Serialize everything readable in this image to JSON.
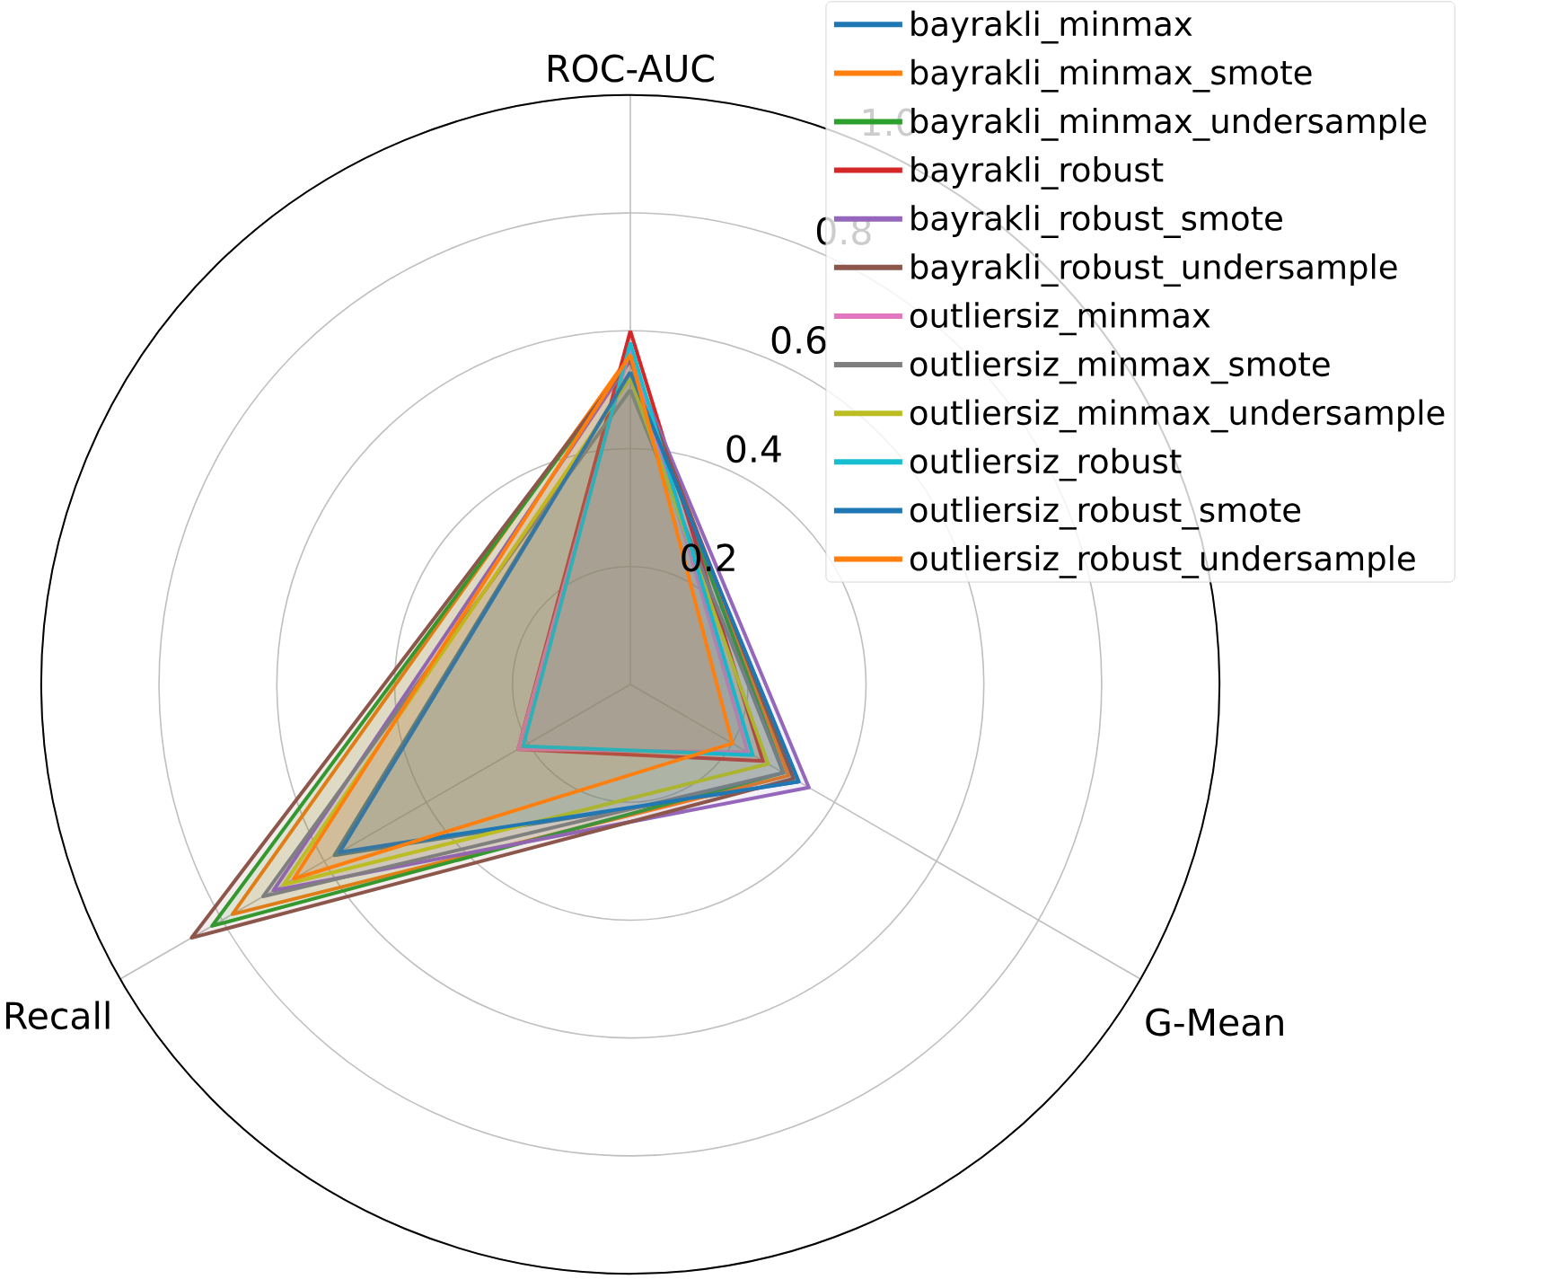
{
  "chart_data": {
    "type": "radar",
    "categories": [
      "ROC-AUC",
      "G-Mean",
      "Recall"
    ],
    "series": [
      {
        "name": "bayrakli_minmax",
        "color": "#1f77b4",
        "values": [
          0.53,
          0.33,
          0.58
        ]
      },
      {
        "name": "bayrakli_minmax_smote",
        "color": "#ff7f0e",
        "values": [
          0.56,
          0.31,
          0.78
        ]
      },
      {
        "name": "bayrakli_minmax_undersample",
        "color": "#2ca02c",
        "values": [
          0.55,
          0.3,
          0.82
        ]
      },
      {
        "name": "bayrakli_robust",
        "color": "#d62728",
        "values": [
          0.6,
          0.26,
          0.22
        ]
      },
      {
        "name": "bayrakli_robust_smote",
        "color": "#9467bd",
        "values": [
          0.55,
          0.35,
          0.7
        ]
      },
      {
        "name": "bayrakli_robust_undersample",
        "color": "#8c564b",
        "values": [
          0.55,
          0.32,
          0.86
        ]
      },
      {
        "name": "outliersiz_minmax",
        "color": "#e377c2",
        "values": [
          0.57,
          0.23,
          0.22
        ]
      },
      {
        "name": "outliersiz_minmax_smote",
        "color": "#7f7f7f",
        "values": [
          0.5,
          0.3,
          0.72
        ]
      },
      {
        "name": "outliersiz_minmax_undersample",
        "color": "#bcbd22",
        "values": [
          0.52,
          0.27,
          0.68
        ]
      },
      {
        "name": "outliersiz_robust",
        "color": "#17becf",
        "values": [
          0.58,
          0.24,
          0.21
        ]
      },
      {
        "name": "outliersiz_robust_smote",
        "color": "#1f77b4",
        "values": [
          0.53,
          0.33,
          0.57
        ]
      },
      {
        "name": "outliersiz_robust_undersample",
        "color": "#ff7f0e",
        "values": [
          0.56,
          0.2,
          0.66
        ]
      }
    ],
    "ylim": [
      0,
      1
    ],
    "yticks": [
      0.2,
      0.4,
      0.6,
      0.8,
      {
        "value": 1,
        "label": "1.0"
      }
    ],
    "grid": true,
    "legend": "top right"
  }
}
